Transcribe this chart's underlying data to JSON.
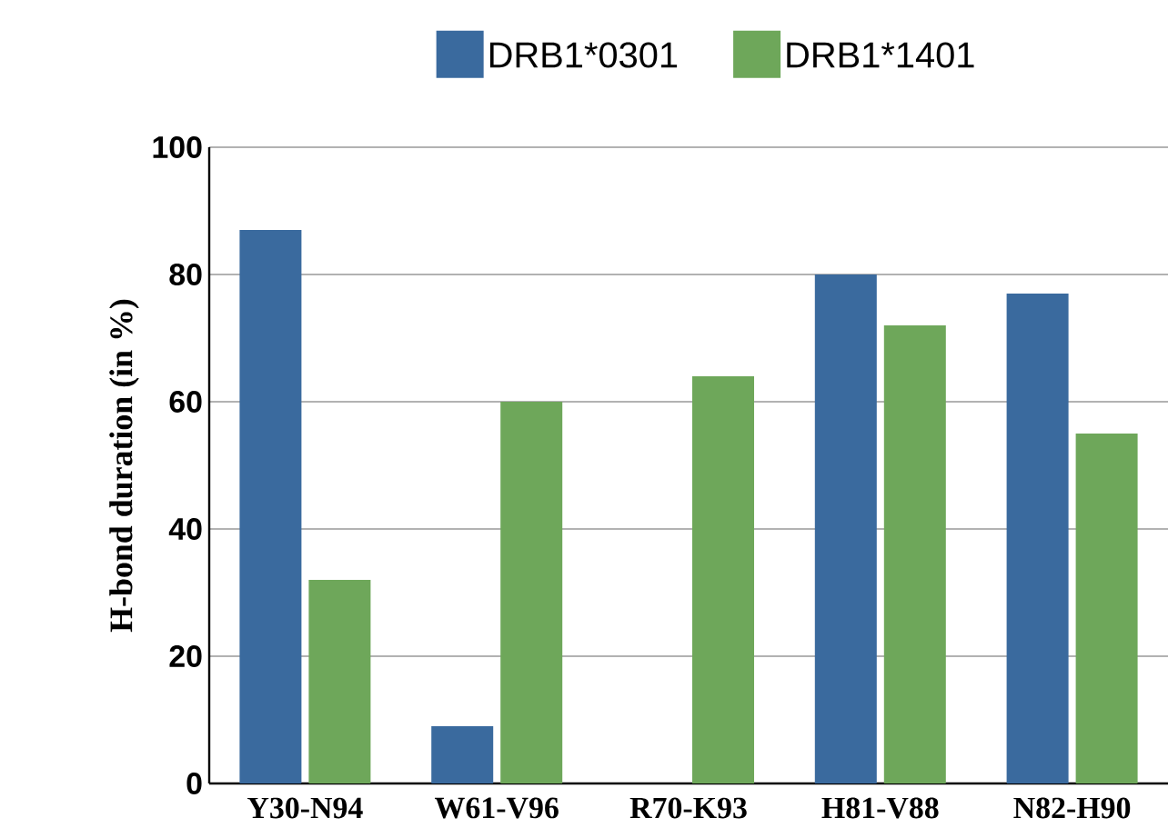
{
  "chart_data": {
    "type": "bar",
    "ylabel": "H-bond duration (in %)",
    "categories": [
      "Y30-N94",
      "W61-V96",
      "R70-K93",
      "H81-V88",
      "N82-H90"
    ],
    "series": [
      {
        "name": "DRB1*0301",
        "color": "#3a6a9e",
        "values": [
          87,
          9,
          0,
          80,
          77
        ]
      },
      {
        "name": "DRB1*1401",
        "color": "#6ea75a",
        "values": [
          32,
          60,
          64,
          72,
          55
        ]
      }
    ],
    "ylim": [
      0,
      100
    ],
    "yticks": [
      0,
      20,
      40,
      60,
      80,
      100
    ],
    "grid": "y",
    "legend": "top"
  }
}
